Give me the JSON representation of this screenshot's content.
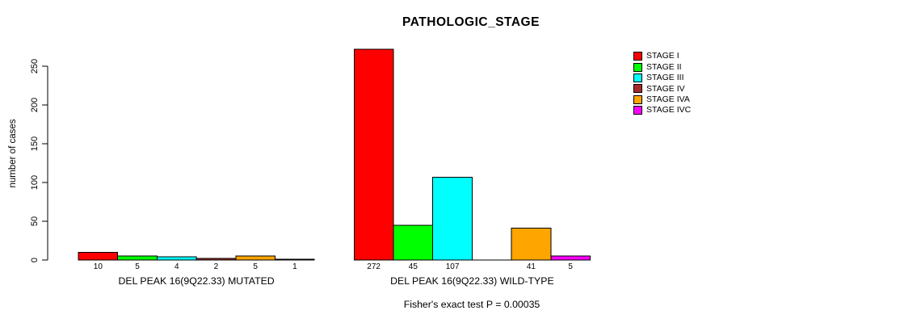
{
  "chart_data": {
    "type": "bar",
    "title": "PATHOLOGIC_STAGE",
    "ylabel": "number of cases",
    "xlabel": "",
    "annotation": "Fisher's exact test P = 0.00035",
    "ylim": [
      0,
      250
    ],
    "yticks": [
      0,
      50,
      100,
      150,
      200,
      250
    ],
    "grid": false,
    "legend_position": "right",
    "categories": [
      "DEL PEAK 16(9Q22.33) MUTATED",
      "DEL PEAK 16(9Q22.33) WILD-TYPE"
    ],
    "series": [
      {
        "name": "STAGE I",
        "color": "#ff0000",
        "values": [
          10,
          272
        ]
      },
      {
        "name": "STAGE II",
        "color": "#00ff00",
        "values": [
          5,
          45
        ]
      },
      {
        "name": "STAGE III",
        "color": "#00ffff",
        "values": [
          4,
          107
        ]
      },
      {
        "name": "STAGE IV",
        "color": "#a52a2a",
        "values": [
          2,
          0
        ]
      },
      {
        "name": "STAGE IVA",
        "color": "#ffa500",
        "values": [
          5,
          41
        ]
      },
      {
        "name": "STAGE IVC",
        "color": "#ff00ff",
        "values": [
          1,
          5
        ]
      }
    ],
    "bar_labels": [
      [
        "10",
        "5",
        "4",
        "2",
        "5",
        "1"
      ],
      [
        "272",
        "45",
        "107",
        "",
        "41",
        "5"
      ]
    ]
  }
}
